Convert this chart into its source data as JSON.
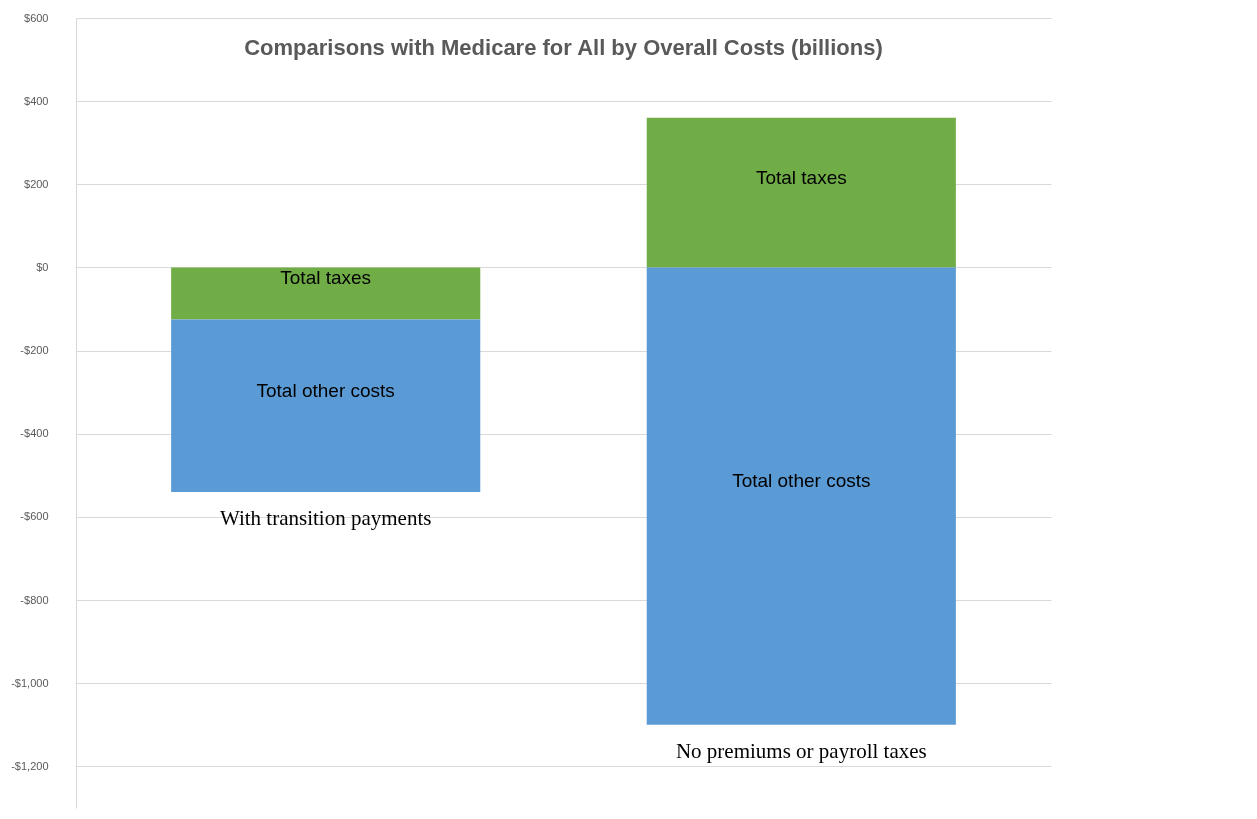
{
  "chart_data": {
    "type": "bar",
    "stacked": true,
    "title": "Comparisons with Medicare for All by Overall Costs (billions)",
    "categories": [
      "With transition payments",
      "No premiums or payroll taxes"
    ],
    "series": [
      {
        "name": "Total taxes",
        "color": "#70ad47",
        "values": [
          -125,
          360
        ]
      },
      {
        "name": "Total other costs",
        "color": "#5b9bd5",
        "values": [
          -415,
          -1100
        ]
      }
    ],
    "ylim": [
      -1300,
      600
    ],
    "yticks": [
      {
        "value": -1200,
        "label": "-$1,200"
      },
      {
        "value": -1000,
        "label": "-$1,000"
      },
      {
        "value": -800,
        "label": "-$800"
      },
      {
        "value": -600,
        "label": "-$600"
      },
      {
        "value": -400,
        "label": "-$400"
      },
      {
        "value": -200,
        "label": "-$200"
      },
      {
        "value": 0,
        "label": "$0"
      },
      {
        "value": 200,
        "label": "$200"
      },
      {
        "value": 400,
        "label": "$400"
      },
      {
        "value": 600,
        "label": "$600"
      }
    ],
    "grid": "y",
    "legend": false
  }
}
